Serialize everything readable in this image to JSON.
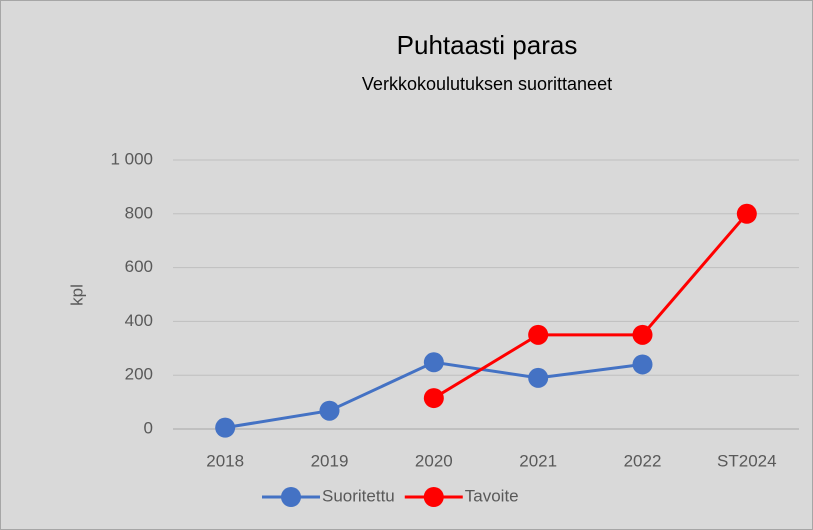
{
  "chart_data": {
    "type": "line",
    "title": "Puhtaasti paras",
    "subtitle": "Verkkokoulutuksen suorittaneet",
    "y_label": "kpl",
    "categories": [
      "2018",
      "2019",
      "2020",
      "2021",
      "2022",
      "ST2024"
    ],
    "series": [
      {
        "name": "Suoritettu",
        "color": "#4472c4",
        "values": [
          5,
          68,
          248,
          190,
          240,
          null
        ]
      },
      {
        "name": "Tavoite",
        "color": "#ff0000",
        "values": [
          null,
          null,
          115,
          350,
          350,
          800
        ]
      }
    ],
    "ylim": [
      0,
      1000
    ],
    "yticks": [
      0,
      200,
      400,
      600,
      800,
      {
        "value": 1000,
        "label": "1 000"
      }
    ],
    "grid": true,
    "legend": "bottom"
  }
}
